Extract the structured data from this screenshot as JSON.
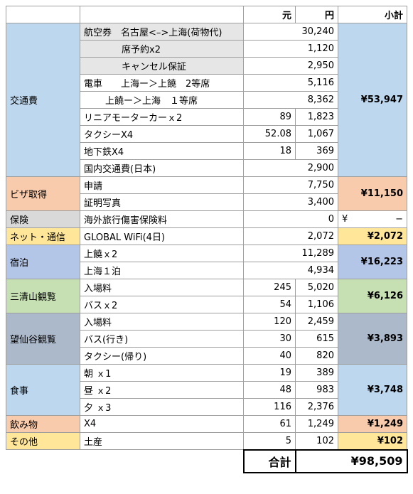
{
  "header": {
    "yuan": "元",
    "yen": "円",
    "subtotal": "小計"
  },
  "groups": [
    {
      "category": "交通費",
      "subtotal": "¥53,947",
      "items": [
        {
          "name": "航空券　名古屋<–>上海(荷物代)",
          "yen": "30,240"
        },
        {
          "name": "席予約x2",
          "yen": "1,120"
        },
        {
          "name": "キャンセル保証",
          "yen": "2,950"
        },
        {
          "name": "電車　　上海ー＞上饒　2等席",
          "yen": "5,116"
        },
        {
          "name": "上饒ー＞上海　１等席",
          "yen": "8,362"
        },
        {
          "name": "リニアモーターカーｘ2",
          "yuan": "89",
          "yen": "1,823"
        },
        {
          "name": "タクシーX4",
          "yuan": "52.08",
          "yen": "1,067"
        },
        {
          "name": "地下鉄X4",
          "yuan": "18",
          "yen": "369"
        },
        {
          "name": "国内交通費(日本)",
          "yen": "2,900"
        }
      ]
    },
    {
      "category": "ビザ取得",
      "subtotal": "¥11,150",
      "items": [
        {
          "name": "申請",
          "yen": "7,750"
        },
        {
          "name": "証明写真",
          "yen": "3,400"
        }
      ]
    },
    {
      "category": "保険",
      "subtotal": {
        "symbol": "¥",
        "value": "−"
      },
      "items": [
        {
          "name": "海外旅行傷害保険料",
          "yen": "0"
        }
      ]
    },
    {
      "category": "ネット・通信",
      "subtotal": "¥2,072",
      "items": [
        {
          "name": "GLOBAL WiFi(4日)",
          "yen": "2,072"
        }
      ]
    },
    {
      "category": "宿泊",
      "subtotal": "¥16,223",
      "items": [
        {
          "name": "上饒ｘ2",
          "yen": "11,289"
        },
        {
          "name": "上海１泊",
          "yen": "4,934"
        }
      ]
    },
    {
      "category": "三清山観覧",
      "subtotal": "¥6,126",
      "items": [
        {
          "name": "入場料",
          "yuan": "245",
          "yen": "5,020"
        },
        {
          "name": "バスｘ2",
          "yuan": "54",
          "yen": "1,106"
        }
      ]
    },
    {
      "category": "望仙谷観覧",
      "subtotal": "¥3,893",
      "items": [
        {
          "name": "入場料",
          "yuan": "120",
          "yen": "2,459"
        },
        {
          "name": "バス(行き)",
          "yuan": "30",
          "yen": "615"
        },
        {
          "name": "タクシー(帰り)",
          "yuan": "40",
          "yen": "820"
        }
      ]
    },
    {
      "category": "食事",
      "subtotal": "¥3,748",
      "items": [
        {
          "name": "朝 ｘ1",
          "yuan": "19",
          "yen": "389"
        },
        {
          "name": "昼 ｘ2",
          "yuan": "48",
          "yen": "983"
        },
        {
          "name": "夕 ｘ3",
          "yuan": "116",
          "yen": "2,376"
        }
      ]
    },
    {
      "category": "飲み物",
      "subtotal": "¥1,249",
      "items": [
        {
          "name": "X4",
          "yuan": "61",
          "yen": "1,249"
        }
      ]
    },
    {
      "category": "その他",
      "subtotal": "¥102",
      "items": [
        {
          "name": "土産",
          "yuan": "5",
          "yen": "102"
        }
      ]
    }
  ],
  "total": {
    "label": "合計",
    "value": "¥98,509"
  }
}
